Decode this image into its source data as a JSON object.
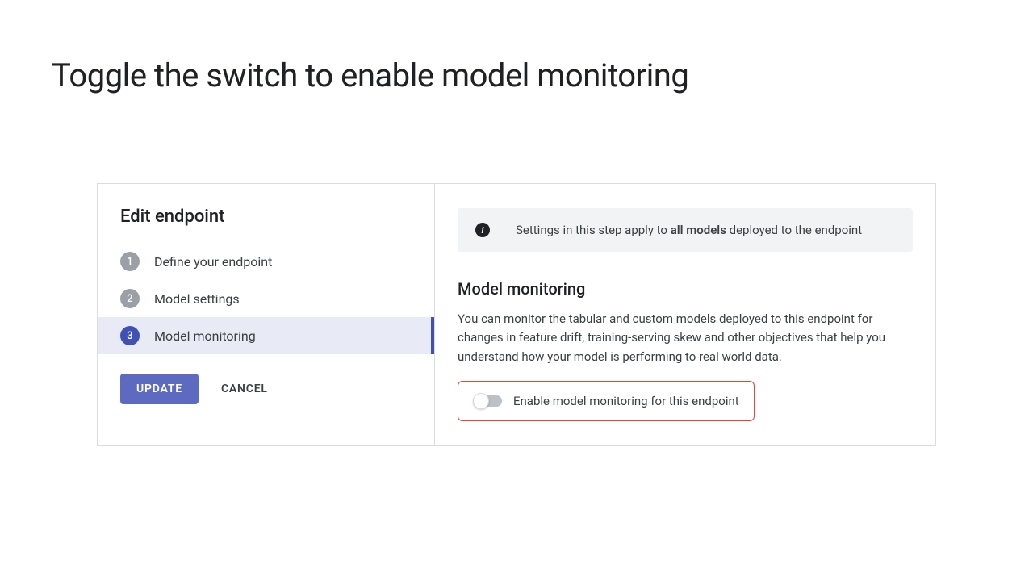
{
  "page_title": "Toggle the switch to enable model monitoring",
  "left": {
    "title": "Edit endpoint",
    "steps": [
      {
        "num": "1",
        "label": "Define your endpoint",
        "active": false
      },
      {
        "num": "2",
        "label": "Model settings",
        "active": false
      },
      {
        "num": "3",
        "label": "Model monitoring",
        "active": true
      }
    ],
    "update_btn": "UPDATE",
    "cancel_btn": "CANCEL"
  },
  "right": {
    "info_prefix": "Settings in this step apply to ",
    "info_bold": "all models",
    "info_suffix": " deployed to the endpoint",
    "section_title": "Model monitoring",
    "section_desc": "You can monitor the tabular and custom models deployed to this endpoint for changes in feature drift, training-serving skew and other objectives that help you understand how your model is performing to real world data.",
    "toggle_label": "Enable model monitoring for this endpoint",
    "toggle_on": false
  },
  "colors": {
    "primary": "#5c6bc0",
    "step_active_bg": "#e8eaf6",
    "step_active_bar": "#3f51b5",
    "step_inactive_num": "#9aa0a6",
    "highlight_border": "#ea4335",
    "banner_bg": "#f1f3f4",
    "text": "#3c4043",
    "title": "#202124"
  }
}
